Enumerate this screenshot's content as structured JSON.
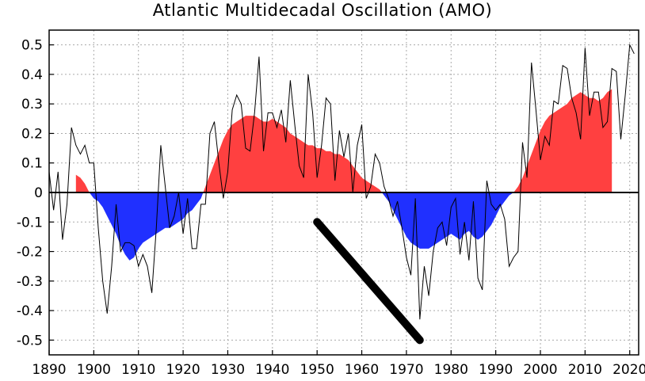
{
  "chart_data": {
    "type": "area",
    "title": "Atlantic Multidecadal Oscillation (AMO)",
    "xlabel": "",
    "ylabel": "",
    "xlim": [
      1890,
      2022
    ],
    "ylim": [
      -0.55,
      0.55
    ],
    "x_ticks": [
      1890,
      1900,
      1910,
      1920,
      1930,
      1940,
      1950,
      1960,
      1970,
      1980,
      1990,
      2000,
      2010,
      2020
    ],
    "y_ticks": [
      -0.5,
      -0.4,
      -0.3,
      -0.2,
      -0.1,
      0,
      0.1,
      0.2,
      0.3,
      0.4,
      0.5
    ],
    "y_tick_labels": [
      "-0.5",
      "-0.4",
      "-0.3",
      "-0.2",
      "-0.1",
      "0",
      "0.1",
      "0.2",
      "0.3",
      "0.4",
      "0.5"
    ],
    "grid": true,
    "colors": {
      "positive": "#ff4040",
      "negative": "#2030ff",
      "annual": "#000000",
      "trend": "#000000"
    },
    "series": [
      {
        "role": "smoothed",
        "x": [
          1896,
          1897,
          1898,
          1899,
          1900,
          1901,
          1902,
          1903,
          1904,
          1905,
          1906,
          1907,
          1908,
          1909,
          1910,
          1911,
          1912,
          1913,
          1914,
          1915,
          1916,
          1917,
          1918,
          1919,
          1920,
          1921,
          1922,
          1923,
          1924,
          1925,
          1926,
          1927,
          1928,
          1929,
          1930,
          1931,
          1932,
          1933,
          1934,
          1935,
          1936,
          1937,
          1938,
          1939,
          1940,
          1941,
          1942,
          1943,
          1944,
          1945,
          1946,
          1947,
          1948,
          1949,
          1950,
          1951,
          1952,
          1953,
          1954,
          1955,
          1956,
          1957,
          1958,
          1959,
          1960,
          1961,
          1962,
          1963,
          1964,
          1965,
          1966,
          1967,
          1968,
          1969,
          1970,
          1971,
          1972,
          1973,
          1974,
          1975,
          1976,
          1977,
          1978,
          1979,
          1980,
          1981,
          1982,
          1983,
          1984,
          1985,
          1986,
          1987,
          1988,
          1989,
          1990,
          1991,
          1992,
          1993,
          1994,
          1995,
          1996,
          1997,
          1998,
          1999,
          2000,
          2001,
          2002,
          2003,
          2004,
          2005,
          2006,
          2007,
          2008,
          2009,
          2010,
          2011,
          2012,
          2013,
          2014,
          2015,
          2016
        ],
        "y": [
          0.06,
          0.05,
          0.03,
          0.0,
          -0.02,
          -0.03,
          -0.05,
          -0.08,
          -0.11,
          -0.14,
          -0.18,
          -0.21,
          -0.23,
          -0.22,
          -0.19,
          -0.17,
          -0.16,
          -0.15,
          -0.14,
          -0.13,
          -0.12,
          -0.12,
          -0.11,
          -0.1,
          -0.09,
          -0.07,
          -0.06,
          -0.04,
          -0.02,
          0.02,
          0.06,
          0.1,
          0.14,
          0.18,
          0.21,
          0.23,
          0.24,
          0.25,
          0.26,
          0.26,
          0.26,
          0.25,
          0.24,
          0.24,
          0.25,
          0.24,
          0.23,
          0.22,
          0.2,
          0.19,
          0.18,
          0.17,
          0.16,
          0.16,
          0.15,
          0.15,
          0.14,
          0.14,
          0.13,
          0.13,
          0.12,
          0.11,
          0.09,
          0.07,
          0.05,
          0.04,
          0.03,
          0.02,
          0.01,
          -0.01,
          -0.03,
          -0.06,
          -0.09,
          -0.12,
          -0.15,
          -0.17,
          -0.18,
          -0.19,
          -0.19,
          -0.19,
          -0.18,
          -0.17,
          -0.16,
          -0.15,
          -0.14,
          -0.15,
          -0.16,
          -0.14,
          -0.13,
          -0.15,
          -0.16,
          -0.15,
          -0.13,
          -0.11,
          -0.08,
          -0.05,
          -0.03,
          -0.01,
          0.0,
          0.02,
          0.05,
          0.09,
          0.13,
          0.17,
          0.21,
          0.24,
          0.26,
          0.27,
          0.28,
          0.29,
          0.3,
          0.32,
          0.33,
          0.34,
          0.33,
          0.32,
          0.32,
          0.31,
          0.32,
          0.34,
          0.35
        ]
      },
      {
        "role": "annual",
        "x": [
          1890,
          1891,
          1892,
          1893,
          1894,
          1895,
          1896,
          1897,
          1898,
          1899,
          1900,
          1901,
          1902,
          1903,
          1904,
          1905,
          1906,
          1907,
          1908,
          1909,
          1910,
          1911,
          1912,
          1913,
          1914,
          1915,
          1916,
          1917,
          1918,
          1919,
          1920,
          1921,
          1922,
          1923,
          1924,
          1925,
          1926,
          1927,
          1928,
          1929,
          1930,
          1931,
          1932,
          1933,
          1934,
          1935,
          1936,
          1937,
          1938,
          1939,
          1940,
          1941,
          1942,
          1943,
          1944,
          1945,
          1946,
          1947,
          1948,
          1949,
          1950,
          1951,
          1952,
          1953,
          1954,
          1955,
          1956,
          1957,
          1958,
          1959,
          1960,
          1961,
          1962,
          1963,
          1964,
          1965,
          1966,
          1967,
          1968,
          1969,
          1970,
          1971,
          1972,
          1973,
          1974,
          1975,
          1976,
          1977,
          1978,
          1979,
          1980,
          1981,
          1982,
          1983,
          1984,
          1985,
          1986,
          1987,
          1988,
          1989,
          1990,
          1991,
          1992,
          1993,
          1994,
          1995,
          1996,
          1997,
          1998,
          1999,
          2000,
          2001,
          2002,
          2003,
          2004,
          2005,
          2006,
          2007,
          2008,
          2009,
          2010,
          2011,
          2012,
          2013,
          2014,
          2015,
          2016,
          2017,
          2018,
          2019,
          2020,
          2021
        ],
        "y": [
          0.07,
          -0.06,
          0.07,
          -0.16,
          -0.04,
          0.22,
          0.16,
          0.13,
          0.16,
          0.1,
          0.1,
          -0.12,
          -0.3,
          -0.41,
          -0.25,
          -0.04,
          -0.2,
          -0.17,
          -0.17,
          -0.18,
          -0.25,
          -0.21,
          -0.25,
          -0.34,
          -0.12,
          0.16,
          0.02,
          -0.12,
          -0.08,
          0.0,
          -0.14,
          -0.02,
          -0.19,
          -0.19,
          -0.04,
          -0.04,
          0.2,
          0.24,
          0.1,
          -0.02,
          0.07,
          0.28,
          0.33,
          0.3,
          0.15,
          0.14,
          0.27,
          0.46,
          0.14,
          0.27,
          0.27,
          0.22,
          0.28,
          0.17,
          0.38,
          0.23,
          0.09,
          0.05,
          0.4,
          0.27,
          0.05,
          0.16,
          0.32,
          0.3,
          0.04,
          0.21,
          0.12,
          0.2,
          0.0,
          0.16,
          0.23,
          -0.02,
          0.02,
          0.13,
          0.1,
          0.02,
          -0.02,
          -0.08,
          -0.03,
          -0.12,
          -0.22,
          -0.28,
          -0.02,
          -0.43,
          -0.25,
          -0.35,
          -0.2,
          -0.12,
          -0.1,
          -0.18,
          -0.05,
          -0.02,
          -0.21,
          -0.1,
          -0.23,
          -0.03,
          -0.29,
          -0.33,
          0.04,
          -0.04,
          -0.06,
          -0.04,
          -0.09,
          -0.25,
          -0.22,
          -0.2,
          0.17,
          0.05,
          0.44,
          0.28,
          0.11,
          0.19,
          0.16,
          0.31,
          0.3,
          0.43,
          0.42,
          0.32,
          0.27,
          0.18,
          0.49,
          0.26,
          0.34,
          0.34,
          0.22,
          0.24,
          0.42,
          0.41,
          0.18,
          0.33,
          0.5,
          0.47
        ]
      },
      {
        "role": "trend",
        "x": [
          1950,
          1973
        ],
        "y": [
          -0.1,
          -0.5
        ]
      }
    ]
  }
}
